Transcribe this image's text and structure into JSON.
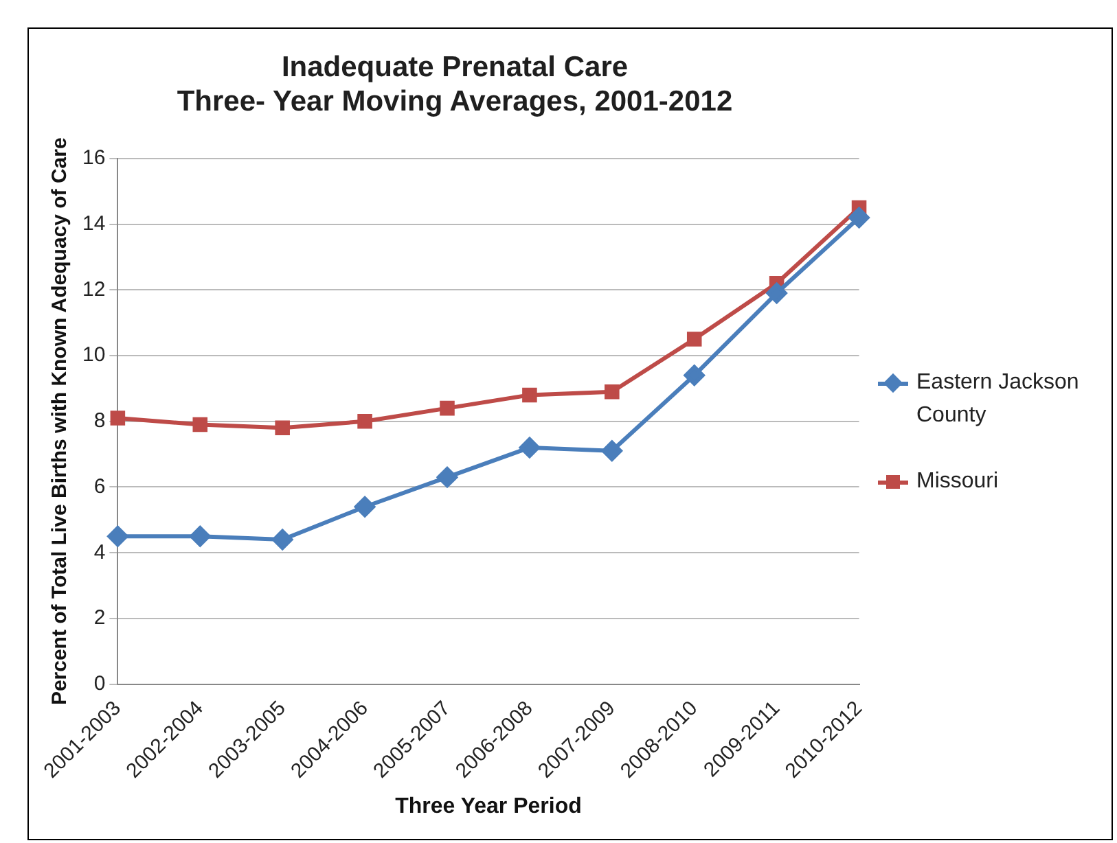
{
  "chart_data": {
    "type": "line",
    "title": "Inadequate Prenatal Care\nThree- Year Moving Averages, 2001-2012",
    "xlabel": "Three Year Period",
    "ylabel": "Percent of Total Live Births with Known Adequacy of Care",
    "categories": [
      "2001-2003",
      "2002-2004",
      "2003-2005",
      "2004-2006",
      "2005-2007",
      "2006-2008",
      "2007-2009",
      "2008-2010",
      "2009-2011",
      "2010-2012"
    ],
    "series": [
      {
        "name": "Eastern Jackson County",
        "color": "#4a7ebb",
        "marker": "diamond",
        "values": [
          4.5,
          4.5,
          4.4,
          5.4,
          6.3,
          7.2,
          7.1,
          9.4,
          11.9,
          14.2
        ]
      },
      {
        "name": "Missouri",
        "color": "#be4b48",
        "marker": "square",
        "values": [
          8.1,
          7.9,
          7.8,
          8.0,
          8.4,
          8.8,
          8.9,
          10.5,
          12.2,
          14.5
        ]
      }
    ],
    "ylim": [
      0,
      16
    ],
    "yticks": [
      0,
      2,
      4,
      6,
      8,
      10,
      12,
      14,
      16
    ],
    "grid": "y",
    "legend": "right"
  }
}
